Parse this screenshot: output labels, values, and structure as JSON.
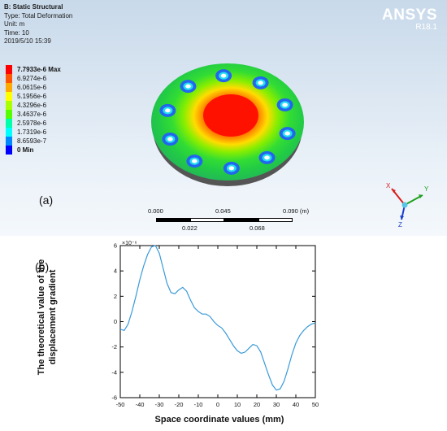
{
  "header": {
    "title": "B: Static Structural",
    "type": "Type: Total Deformation",
    "unit": "Unit: m",
    "time": "Time: 10",
    "date": "2019/5/10 15:39"
  },
  "brand": {
    "name": "ANSYS",
    "version": "R18.1"
  },
  "legend": [
    {
      "label": "7.7933e-6 Max",
      "color": "#ff0000",
      "bold": true
    },
    {
      "label": "6.9274e-6",
      "color": "#ff5500"
    },
    {
      "label": "6.0615e-6",
      "color": "#ffaa00"
    },
    {
      "label": "5.1956e-6",
      "color": "#ffff00"
    },
    {
      "label": "4.3296e-6",
      "color": "#aaff00"
    },
    {
      "label": "3.4637e-6",
      "color": "#55ff00"
    },
    {
      "label": "2.5978e-6",
      "color": "#00ffaa"
    },
    {
      "label": "1.7319e-6",
      "color": "#00ffff"
    },
    {
      "label": "8.6593e-7",
      "color": "#0088ff"
    },
    {
      "label": "0 Min",
      "color": "#0000ff",
      "bold": true
    }
  ],
  "labels": {
    "a": "(a)",
    "b": "(b)"
  },
  "scale": {
    "top": [
      "0.000",
      "0.045",
      "0.090 (m)"
    ],
    "bottom": [
      "0.022",
      "0.068"
    ]
  },
  "triad": {
    "x": "X",
    "y": "Y",
    "z": "Z"
  },
  "chart_data": {
    "type": "line",
    "xlabel": "Space coordinate values (mm)",
    "ylabel": "The theoretical value of the displacement gradient",
    "y_multiplier": "×10⁻⁶",
    "xlim": [
      -50,
      50
    ],
    "ylim": [
      -6,
      6
    ],
    "xticks": [
      -50,
      -40,
      -30,
      -20,
      -10,
      0,
      10,
      20,
      30,
      40,
      50
    ],
    "yticks": [
      -6,
      -4,
      -2,
      0,
      2,
      4,
      6
    ],
    "color": "#3a9ad9",
    "x": [
      -50,
      -48,
      -46,
      -44,
      -42,
      -40,
      -38,
      -36,
      -34,
      -32,
      -30,
      -28,
      -26,
      -24,
      -22,
      -20,
      -18,
      -16,
      -14,
      -12,
      -10,
      -8,
      -6,
      -4,
      -2,
      0,
      2,
      4,
      6,
      8,
      10,
      12,
      14,
      16,
      18,
      20,
      22,
      24,
      26,
      28,
      30,
      32,
      34,
      36,
      38,
      40,
      42,
      44,
      46,
      48,
      50
    ],
    "y": [
      -0.6,
      -0.7,
      -0.2,
      0.8,
      2.0,
      3.3,
      4.4,
      5.3,
      5.9,
      6.0,
      5.4,
      4.2,
      3.0,
      2.3,
      2.2,
      2.5,
      2.7,
      2.4,
      1.7,
      1.1,
      0.8,
      0.6,
      0.6,
      0.4,
      0.0,
      -0.3,
      -0.5,
      -0.9,
      -1.4,
      -1.9,
      -2.3,
      -2.5,
      -2.4,
      -2.1,
      -1.8,
      -1.9,
      -2.4,
      -3.3,
      -4.2,
      -5.0,
      -5.4,
      -5.3,
      -4.7,
      -3.7,
      -2.6,
      -1.7,
      -1.1,
      -0.7,
      -0.4,
      -0.2,
      -0.1
    ]
  }
}
